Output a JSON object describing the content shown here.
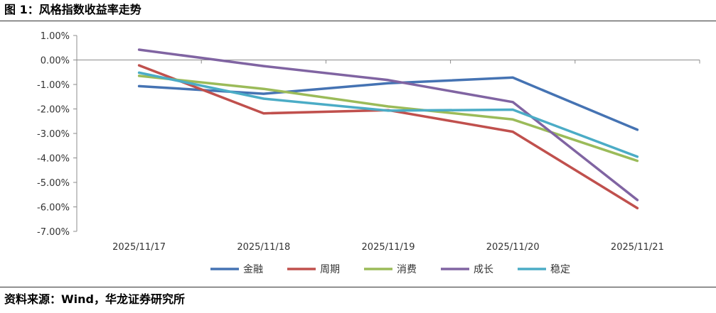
{
  "figure": {
    "title": "图 1：风格指数收益率走势",
    "source": "资料来源：Wind，华龙证券研究所"
  },
  "chart_data": {
    "type": "line",
    "x": [
      "2025/11/17",
      "2025/11/18",
      "2025/11/19",
      "2025/11/20",
      "2025/11/21"
    ],
    "series": [
      {
        "name": "金融",
        "color": "#4573b3",
        "values": [
          -1.07,
          -1.38,
          -0.95,
          -0.72,
          -2.85
        ]
      },
      {
        "name": "周期",
        "color": "#c0504d",
        "values": [
          -0.22,
          -2.18,
          -2.05,
          -2.93,
          -6.05
        ]
      },
      {
        "name": "消费",
        "color": "#9bbb59",
        "values": [
          -0.65,
          -1.18,
          -1.9,
          -2.43,
          -4.12
        ]
      },
      {
        "name": "成长",
        "color": "#8064a2",
        "values": [
          0.42,
          -0.25,
          -0.82,
          -1.72,
          -5.72
        ]
      },
      {
        "name": "稳定",
        "color": "#4bacc6",
        "values": [
          -0.52,
          -1.58,
          -2.07,
          -2.03,
          -3.95
        ]
      }
    ],
    "ylim": [
      -7,
      1
    ],
    "yticks": [
      "1.00%",
      "0.00%",
      "-1.00%",
      "-2.00%",
      "-3.00%",
      "-4.00%",
      "-5.00%",
      "-6.00%",
      "-7.00%"
    ],
    "grid": false,
    "legend_position": "bottom"
  }
}
